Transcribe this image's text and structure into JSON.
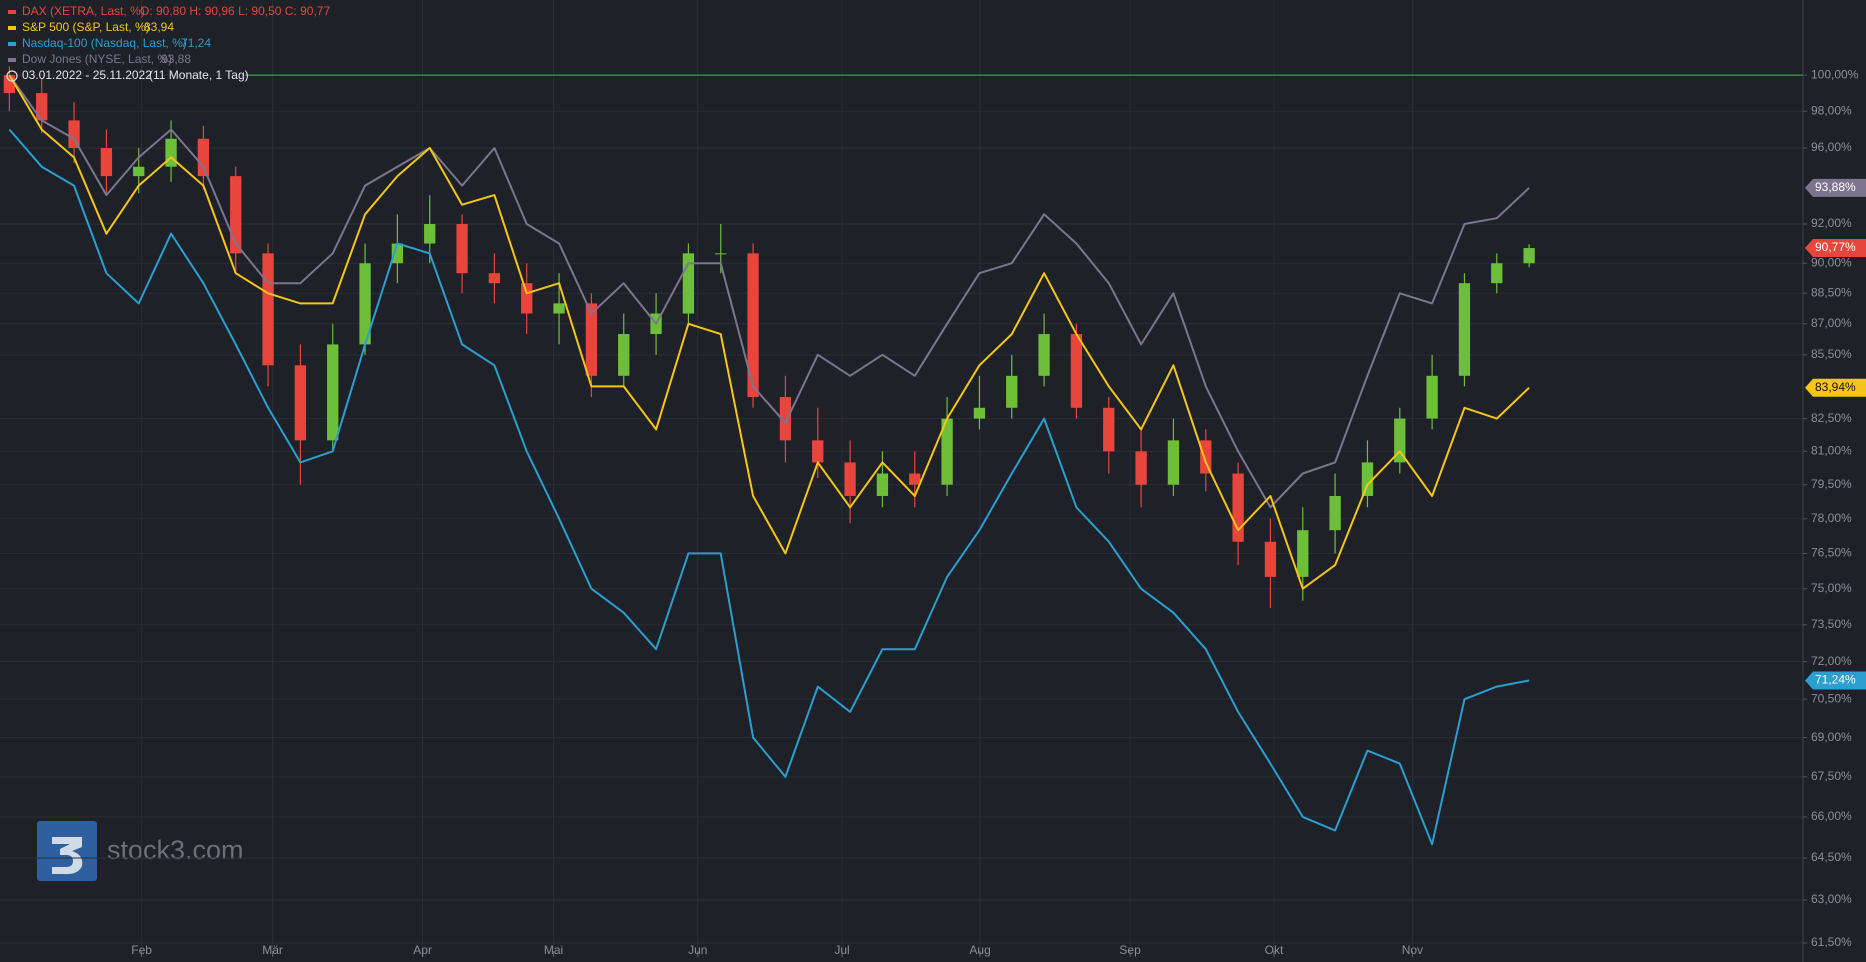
{
  "chart_data": {
    "type": "candlestick-lines",
    "log": true,
    "grid": true,
    "date_range": "03.01.2022 - 25.11.2022",
    "period": "(11 Monate, 1 Tag)",
    "watermark": "stock3.com",
    "hline": 100,
    "xlim": [
      -0.29,
      55.47
    ],
    "xticks": [
      {
        "value": 4.09,
        "label": "Feb"
      },
      {
        "value": 8.14,
        "label": "Mär"
      },
      {
        "value": 12.78,
        "label": "Apr"
      },
      {
        "value": 16.83,
        "label": "Mai"
      },
      {
        "value": 21.29,
        "label": "Jun"
      },
      {
        "value": 25.75,
        "label": "Jul"
      },
      {
        "value": 30.02,
        "label": "Aug"
      },
      {
        "value": 34.66,
        "label": "Sep"
      },
      {
        "value": 39.11,
        "label": "Okt"
      },
      {
        "value": 43.39,
        "label": "Nov"
      }
    ],
    "ylim": [
      61.5,
      104.3
    ],
    "yticks": [
      {
        "value": 100,
        "label": "100,00%"
      },
      {
        "value": 98,
        "label": "98,00%"
      },
      {
        "value": 96,
        "label": "96,00%"
      },
      {
        "value": 92,
        "label": "92,00%"
      },
      {
        "value": 90,
        "label": "90,00%"
      },
      {
        "value": 88.5,
        "label": "88,50%"
      },
      {
        "value": 87,
        "label": "87,00%"
      },
      {
        "value": 85.5,
        "label": "85,50%"
      },
      {
        "value": 82.5,
        "label": "82,50%"
      },
      {
        "value": 81,
        "label": "81,00%"
      },
      {
        "value": 79.5,
        "label": "79,50%"
      },
      {
        "value": 78,
        "label": "78,00%"
      },
      {
        "value": 76.5,
        "label": "76,50%"
      },
      {
        "value": 75,
        "label": "75,00%"
      },
      {
        "value": 73.5,
        "label": "73,50%"
      },
      {
        "value": 72,
        "label": "72,00%"
      },
      {
        "value": 70.5,
        "label": "70,50%"
      },
      {
        "value": 69,
        "label": "69,00%"
      },
      {
        "value": 67.5,
        "label": "67,50%"
      },
      {
        "value": 66,
        "label": "66,00%"
      },
      {
        "value": 64.5,
        "label": "64,50%"
      },
      {
        "value": 63,
        "label": "63,00%"
      },
      {
        "value": 61.5,
        "label": "61,50%"
      }
    ],
    "candles": {
      "name": "DAX (XETRA, Last, %)",
      "ohlc_text": "O: 90,80  H: 90,96  L: 90,50  C: 90,77",
      "tag": "90,77%",
      "color": "#e8453c",
      "up_color": "#6dbf3a",
      "down_color": "#e8453c",
      "open": [
        100,
        99,
        97.5,
        96,
        94.5,
        95,
        96.5,
        94.5,
        90.5,
        85,
        81.5,
        86,
        90,
        91,
        92,
        89.5,
        89,
        87.5,
        88,
        84.5,
        86.5,
        87.5,
        90.5,
        90.5,
        83.5,
        81.5,
        80.5,
        79,
        80,
        79.5,
        82.5,
        83,
        84.5,
        86.5,
        83,
        81,
        79.5,
        81.5,
        80,
        77,
        75.5,
        77.5,
        79,
        80.5,
        82.5,
        84.5,
        89,
        90
      ],
      "high": [
        100.5,
        99.8,
        98.5,
        97,
        96,
        97.5,
        97.2,
        95,
        91,
        86,
        87,
        91,
        92.5,
        93.5,
        92.5,
        90.5,
        90,
        89.5,
        88.5,
        87.5,
        88.5,
        91,
        92,
        91,
        84.5,
        83,
        81.5,
        81,
        81,
        83.5,
        84.5,
        85.5,
        87.5,
        87,
        83.5,
        82,
        82.5,
        82,
        80.5,
        78,
        78.5,
        80,
        81.5,
        83,
        85.5,
        89.5,
        90.5,
        90.96
      ],
      "low": [
        98,
        96.8,
        95.2,
        93.5,
        93.6,
        94.2,
        93.8,
        89.5,
        84,
        79.5,
        81,
        85.5,
        89,
        90,
        88.5,
        88,
        86.5,
        86,
        83.5,
        84,
        85.5,
        87,
        89.5,
        83,
        80.5,
        79.8,
        77.8,
        78.5,
        78.5,
        79,
        82,
        82.5,
        84,
        82.5,
        80,
        78.5,
        79,
        79.2,
        76,
        74.2,
        74.5,
        76.5,
        78.5,
        80,
        82,
        84,
        88.5,
        89.8
      ],
      "close": [
        99,
        97.5,
        96,
        94.5,
        95,
        96.5,
        94.5,
        90.5,
        85,
        81.5,
        86,
        90,
        91,
        92,
        89.5,
        89,
        87.5,
        88,
        84.5,
        86.5,
        87.5,
        90.5,
        90.5,
        83.5,
        81.5,
        80.5,
        79,
        80,
        79.5,
        82.5,
        83,
        84.5,
        86.5,
        83,
        81,
        79.5,
        81.5,
        80,
        77,
        75.5,
        77.5,
        79,
        80.5,
        82.5,
        84.5,
        89,
        90,
        90.77
      ]
    },
    "series": [
      {
        "name": "S&P 500 (S&P, Last, %)",
        "last": "83,94",
        "tag": "83,94%",
        "color": "#f5c518",
        "values": [
          100,
          97,
          95.5,
          91.5,
          94,
          95.5,
          94,
          89.5,
          88.5,
          88,
          88,
          92.5,
          94.5,
          96,
          93,
          93.5,
          88.5,
          89,
          84,
          84,
          82,
          87,
          86.5,
          79,
          76.5,
          80.5,
          78.5,
          80.5,
          79,
          82.5,
          85,
          86.5,
          89.5,
          86.5,
          84,
          82,
          85,
          80.5,
          77.5,
          79,
          75,
          76,
          79.5,
          81,
          79,
          83,
          82.5,
          83.94
        ]
      },
      {
        "name": "Nasdaq-100 (Nasdaq, Last, %)",
        "last": "71,24",
        "tag": "71,24%",
        "color": "#2a9fd0",
        "values": [
          97,
          95,
          94,
          89.5,
          88,
          91.5,
          89,
          86,
          83,
          80.5,
          81,
          86,
          91,
          90.5,
          86,
          85,
          81,
          78,
          75,
          74,
          72.5,
          76.5,
          76.5,
          69,
          67.5,
          71,
          70,
          72.5,
          72.5,
          75.5,
          77.5,
          80,
          82.5,
          78.5,
          77,
          75,
          74,
          72.5,
          70,
          68,
          66,
          65.5,
          68.5,
          68,
          65,
          70.5,
          71,
          71.24
        ]
      },
      {
        "name": "Dow Jones (NYSE, Last, %)",
        "last": "93,88",
        "tag": "93,88%",
        "color": "#7d7590",
        "values": [
          100,
          97.5,
          96.5,
          93.5,
          95.5,
          97,
          95,
          91,
          89,
          89,
          90.5,
          94,
          95,
          96,
          94,
          96,
          92,
          91,
          87.5,
          89,
          87,
          90,
          90,
          84,
          82.3,
          85.5,
          84.5,
          85.5,
          84.5,
          87,
          89.5,
          90,
          92.5,
          91,
          89,
          86,
          88.5,
          84,
          81,
          78.5,
          80,
          80.5,
          84.5,
          88.5,
          88,
          92,
          92.3,
          93.88
        ]
      }
    ]
  }
}
